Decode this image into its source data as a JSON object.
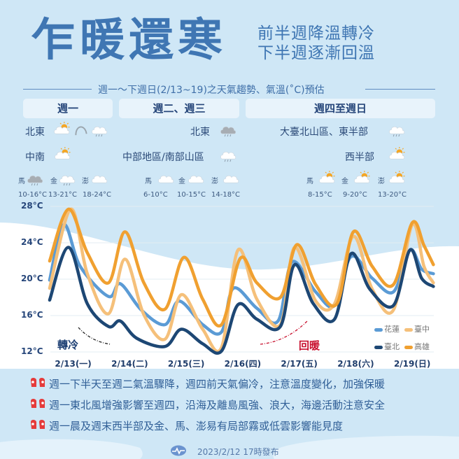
{
  "header": {
    "title": "乍暖還寒",
    "subtitle_lines": [
      "前半週降溫轉冷",
      "下半週逐漸回溫"
    ],
    "section_title": "週一～下週日(2/13~19)之天氣趨勢、氣溫(˚C)預估"
  },
  "columns": [
    {
      "label": "週一",
      "regions": [
        {
          "name": "北東",
          "icons": [
            "sun-cloud",
            "arrow-transition",
            "cloud-rain"
          ]
        },
        {
          "name": "中南",
          "icons": [
            "sun-cloud"
          ]
        }
      ],
      "islands": [
        {
          "name": "馬",
          "icon": "grey-cloud-rain",
          "temp": "10-16°C"
        },
        {
          "name": "金",
          "icon": "cloud-rain",
          "temp": "13-21°C"
        },
        {
          "name": "澎",
          "icon": "cloud",
          "temp": "18-24°C"
        }
      ]
    },
    {
      "label": "週二、週三",
      "regions": [
        {
          "name": "北東",
          "icons": [
            "grey-cloud-rain"
          ]
        },
        {
          "name": "中部地區/南部山區",
          "icons": [
            "cloud-rain"
          ]
        }
      ],
      "islands": [
        {
          "name": "馬",
          "icon": "cloud",
          "temp": "6-10°C"
        },
        {
          "name": "金",
          "icon": "cloud",
          "temp": "10-15°C"
        },
        {
          "name": "澎",
          "icon": "cloud",
          "temp": "14-18°C"
        }
      ]
    },
    {
      "label": "週四至週日",
      "regions": [
        {
          "name": "大臺北山區、東半部",
          "icons": [
            "cloud-rain"
          ]
        },
        {
          "name": "西半部",
          "icons": [
            "sun-cloud"
          ]
        }
      ],
      "islands": [
        {
          "name": "馬",
          "icon": "sun-cloud",
          "temp": "8-15°C"
        },
        {
          "name": "金",
          "icon": "sun-cloud",
          "temp": "9-20°C"
        },
        {
          "name": "澎",
          "icon": "sun-cloud",
          "temp": "13-20°C"
        }
      ]
    }
  ],
  "chart_data": {
    "type": "line",
    "y_ticks": [
      "28°C",
      "24°C",
      "20°C",
      "16°C",
      "12°C"
    ],
    "ylim": [
      12,
      28
    ],
    "x_ticks": [
      "2/13(一)",
      "2/14(二)",
      "2/15(三)",
      "2/16(四)",
      "2/17(五)",
      "2/18(六)",
      "2/19(日)"
    ],
    "grid": true,
    "legend_position": "bottom-right",
    "series": [
      {
        "name": "花蓮",
        "color": "#5b9bd5",
        "points": [
          [
            "2/13 02:00",
            19.9
          ],
          [
            "2/13 08:00",
            26.0
          ],
          [
            "2/13 15:00",
            21.4
          ],
          [
            "2/14 03:00",
            18.1
          ],
          [
            "2/14 08:00",
            19.5
          ],
          [
            "2/14 17:00",
            16.6
          ],
          [
            "2/15 03:00",
            15.0
          ],
          [
            "2/15 09:00",
            17.6
          ],
          [
            "2/15 19:00",
            15.0
          ],
          [
            "2/16 03:00",
            14.2
          ],
          [
            "2/16 08:00",
            19.0
          ],
          [
            "2/16 18:00",
            16.8
          ],
          [
            "2/17 03:00",
            15.4
          ],
          [
            "2/17 09:00",
            21.9
          ],
          [
            "2/17 19:00",
            18.6
          ],
          [
            "2/18 03:00",
            17.1
          ],
          [
            "2/18 10:00",
            22.5
          ],
          [
            "2/18 19:00",
            20.1
          ],
          [
            "2/19 04:00",
            18.6
          ],
          [
            "2/19 11:00",
            23.2
          ],
          [
            "2/19 16:00",
            21.1
          ],
          [
            "2/19 21:00",
            20.6
          ]
        ]
      },
      {
        "name": "臺中",
        "color": "#f5c07a",
        "points": [
          [
            "2/13 02:00",
            19.0
          ],
          [
            "2/13 11:00",
            27.7
          ],
          [
            "2/13 18:00",
            20.6
          ],
          [
            "2/14 03:00",
            16.2
          ],
          [
            "2/14 10:00",
            22.2
          ],
          [
            "2/14 18:00",
            16.1
          ],
          [
            "2/15 03:00",
            13.4
          ],
          [
            "2/15 10:00",
            18.3
          ],
          [
            "2/15 19:00",
            14.5
          ],
          [
            "2/16 03:00",
            12.5
          ],
          [
            "2/16 10:00",
            23.2
          ],
          [
            "2/16 18:00",
            17.8
          ],
          [
            "2/17 04:00",
            15.0
          ],
          [
            "2/17 10:00",
            23.5
          ],
          [
            "2/17 19:00",
            17.6
          ],
          [
            "2/18 03:00",
            17.3
          ],
          [
            "2/18 11:00",
            24.7
          ],
          [
            "2/18 19:00",
            18.9
          ],
          [
            "2/19 04:00",
            16.6
          ],
          [
            "2/19 12:00",
            26.0
          ],
          [
            "2/19 17:00",
            21.4
          ],
          [
            "2/19 21:00",
            19.6
          ]
        ]
      },
      {
        "name": "臺北",
        "color": "#1d4774",
        "points": [
          [
            "2/13 02:00",
            17.7
          ],
          [
            "2/13 10:00",
            23.5
          ],
          [
            "2/13 18:00",
            17.3
          ],
          [
            "2/14 03:00",
            14.8
          ],
          [
            "2/14 08:00",
            15.4
          ],
          [
            "2/14 15:00",
            13.5
          ],
          [
            "2/15 03:00",
            12.6
          ],
          [
            "2/15 10:00",
            14.5
          ],
          [
            "2/15 19:00",
            12.9
          ],
          [
            "2/16 03:00",
            12.1
          ],
          [
            "2/16 10:00",
            17.2
          ],
          [
            "2/16 18:00",
            15.6
          ],
          [
            "2/17 04:00",
            14.8
          ],
          [
            "2/17 10:00",
            21.6
          ],
          [
            "2/17 18:00",
            17.3
          ],
          [
            "2/18 03:00",
            15.6
          ],
          [
            "2/18 10:00",
            22.8
          ],
          [
            "2/18 18:00",
            18.9
          ],
          [
            "2/19 04:00",
            17.1
          ],
          [
            "2/19 11:00",
            23.2
          ],
          [
            "2/19 16:00",
            20.1
          ],
          [
            "2/19 21:00",
            19.2
          ]
        ]
      },
      {
        "name": "高雄",
        "color": "#f0a030",
        "points": [
          [
            "2/13 02:00",
            22.0
          ],
          [
            "2/13 10:00",
            27.7
          ],
          [
            "2/13 18:00",
            22.9
          ],
          [
            "2/14 03:00",
            19.6
          ],
          [
            "2/14 10:00",
            25.2
          ],
          [
            "2/14 18:00",
            19.6
          ],
          [
            "2/15 03:00",
            16.7
          ],
          [
            "2/15 11:00",
            22.4
          ],
          [
            "2/15 19:00",
            17.8
          ],
          [
            "2/16 03:00",
            15.0
          ],
          [
            "2/16 11:00",
            22.3
          ],
          [
            "2/16 18:00",
            19.6
          ],
          [
            "2/17 04:00",
            18.0
          ],
          [
            "2/17 11:00",
            23.8
          ],
          [
            "2/17 19:00",
            19.4
          ],
          [
            "2/18 04:00",
            17.3
          ],
          [
            "2/18 11:00",
            25.2
          ],
          [
            "2/18 19:00",
            21.4
          ],
          [
            "2/19 04:00",
            19.4
          ],
          [
            "2/19 12:00",
            26.2
          ],
          [
            "2/19 17:00",
            23.7
          ],
          [
            "2/19 21:00",
            21.6
          ]
        ]
      }
    ],
    "annotations": [
      {
        "text": "轉冷",
        "color": "#1d3f73"
      },
      {
        "text": "回暖",
        "color": "#c8102e"
      }
    ]
  },
  "bullets": [
    "週一下半天至週二氣溫驟降，週四前天氣偏冷，注意溫度變化，加強保暖",
    "週一東北風增強影響至週四，沿海及離島風強、浪大，海邊活動注意安全",
    "週一晨及週末西半部及金、馬、澎易有局部霧或低雲影響能見度"
  ],
  "footer": {
    "text": "2023/2/12 17時發布",
    "logo": "cwb-logo"
  }
}
